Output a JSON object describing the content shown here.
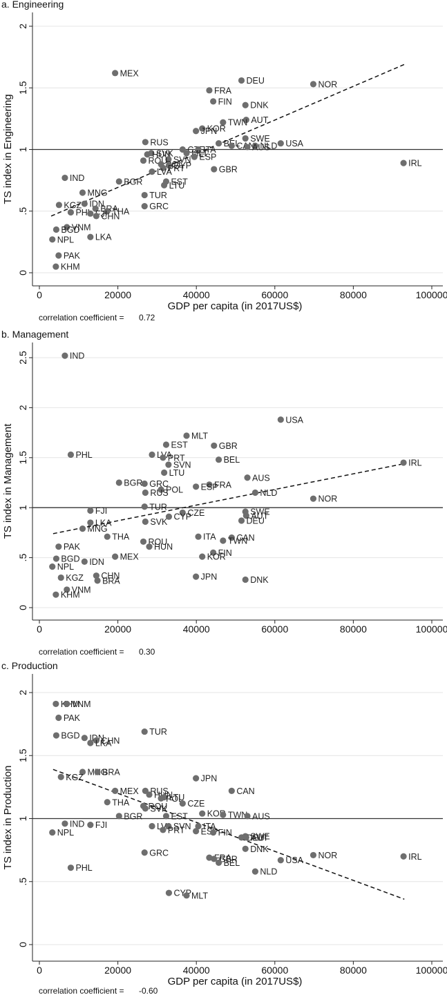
{
  "chart_data": [
    {
      "type": "scatter",
      "title": "a. Engineering",
      "xlabel": "GDP per capita (in 2017US$)",
      "ylabel": "TS index in Engineering",
      "xlim": [
        0,
        100000
      ],
      "ylim": [
        0,
        2
      ],
      "xticks": [
        "0",
        "20000",
        "40000",
        "60000",
        "80000",
        "100000"
      ],
      "yticks": [
        {
          "value": 0,
          "label": "0"
        },
        {
          "value": 0.5,
          "label": ".5"
        },
        {
          "value": 1,
          "label": "1"
        },
        {
          "value": 1.5,
          "label": "1.5"
        },
        {
          "value": 2,
          "label": "2"
        }
      ],
      "reference_line": 1,
      "trend_line": [
        [
          3000,
          0.46
        ],
        [
          93000,
          1.69
        ]
      ],
      "correlation_label": "correlation coefficient =",
      "correlation_value": "0.72",
      "points": [
        {
          "label": "MEX",
          "x": 19300,
          "y": 1.62
        },
        {
          "label": "DEU",
          "x": 51500,
          "y": 1.56
        },
        {
          "label": "NOR",
          "x": 69800,
          "y": 1.53
        },
        {
          "label": "FRA",
          "x": 43300,
          "y": 1.48
        },
        {
          "label": "FIN",
          "x": 44300,
          "y": 1.39
        },
        {
          "label": "DNK",
          "x": 52500,
          "y": 1.36
        },
        {
          "label": "AUT",
          "x": 52700,
          "y": 1.24
        },
        {
          "label": "TWN",
          "x": 46800,
          "y": 1.22
        },
        {
          "label": "KOR",
          "x": 41500,
          "y": 1.17
        },
        {
          "label": "JPN",
          "x": 39900,
          "y": 1.15
        },
        {
          "label": "SWE",
          "x": 52500,
          "y": 1.09
        },
        {
          "label": "RUS",
          "x": 27000,
          "y": 1.06
        },
        {
          "label": "USA",
          "x": 61500,
          "y": 1.05
        },
        {
          "label": "BEL",
          "x": 45700,
          "y": 1.05
        },
        {
          "label": "CAN",
          "x": 49000,
          "y": 1.03
        },
        {
          "label": "NLD",
          "x": 55000,
          "y": 1.03
        },
        {
          "label": "AUS",
          "x": 53000,
          "y": 1.02
        },
        {
          "label": "CZE",
          "x": 36500,
          "y": 1.0
        },
        {
          "label": "ITA",
          "x": 40500,
          "y": 1.0
        },
        {
          "label": "SVK",
          "x": 28500,
          "y": 0.97
        },
        {
          "label": "MLT",
          "x": 37500,
          "y": 0.97
        },
        {
          "label": "HUN",
          "x": 27500,
          "y": 0.96
        },
        {
          "label": "ESP",
          "x": 39500,
          "y": 0.94
        },
        {
          "label": "SVN",
          "x": 32900,
          "y": 0.92
        },
        {
          "label": "ROU",
          "x": 26500,
          "y": 0.91
        },
        {
          "label": "POL",
          "x": 31000,
          "y": 0.88
        },
        {
          "label": "CYP",
          "x": 33000,
          "y": 0.87
        },
        {
          "label": "PRT",
          "x": 31500,
          "y": 0.85
        },
        {
          "label": "LVA",
          "x": 28700,
          "y": 0.82
        },
        {
          "label": "GBR",
          "x": 44500,
          "y": 0.84
        },
        {
          "label": "IRL",
          "x": 92800,
          "y": 0.89
        },
        {
          "label": "IND",
          "x": 6500,
          "y": 0.77
        },
        {
          "label": "BGR",
          "x": 20300,
          "y": 0.74
        },
        {
          "label": "EST",
          "x": 32300,
          "y": 0.74
        },
        {
          "label": "LTU",
          "x": 31800,
          "y": 0.71
        },
        {
          "label": "MNG",
          "x": 11000,
          "y": 0.65
        },
        {
          "label": "TUR",
          "x": 26800,
          "y": 0.63
        },
        {
          "label": "KGZ",
          "x": 5000,
          "y": 0.55
        },
        {
          "label": "IDN",
          "x": 11500,
          "y": 0.56
        },
        {
          "label": "GRC",
          "x": 26800,
          "y": 0.54
        },
        {
          "label": "BRA",
          "x": 14300,
          "y": 0.52
        },
        {
          "label": "THA",
          "x": 17300,
          "y": 0.5
        },
        {
          "label": "PHL",
          "x": 8000,
          "y": 0.49
        },
        {
          "label": "FJI",
          "x": 13000,
          "y": 0.48
        },
        {
          "label": "CHN",
          "x": 14500,
          "y": 0.46
        },
        {
          "label": "VNM",
          "x": 7000,
          "y": 0.37
        },
        {
          "label": "BGD",
          "x": 4300,
          "y": 0.35
        },
        {
          "label": "LKA",
          "x": 13000,
          "y": 0.29
        },
        {
          "label": "NPL",
          "x": 3300,
          "y": 0.27
        },
        {
          "label": "PAK",
          "x": 4900,
          "y": 0.14
        },
        {
          "label": "KHM",
          "x": 4200,
          "y": 0.05
        }
      ]
    },
    {
      "type": "scatter",
      "title": "b. Management",
      "xlabel": "",
      "ylabel": "TS index in Management",
      "xlim": [
        0,
        100000
      ],
      "ylim": [
        0,
        2.5
      ],
      "xticks": [
        "0",
        "20000",
        "40000",
        "60000",
        "80000",
        "100000"
      ],
      "yticks": [
        {
          "value": 0,
          "label": "0"
        },
        {
          "value": 0.5,
          "label": ".5"
        },
        {
          "value": 1,
          "label": "1"
        },
        {
          "value": 1.5,
          "label": "1.5"
        },
        {
          "value": 2,
          "label": "2"
        },
        {
          "value": 2.5,
          "label": "2.5"
        }
      ],
      "reference_line": 1,
      "trend_line": [
        [
          3500,
          0.74
        ],
        [
          93000,
          1.44
        ]
      ],
      "correlation_label": "correlation coefficient =",
      "correlation_value": "0.30",
      "points": [
        {
          "label": "IND",
          "x": 6500,
          "y": 2.52
        },
        {
          "label": "USA",
          "x": 61500,
          "y": 1.88
        },
        {
          "label": "MLT",
          "x": 37500,
          "y": 1.72
        },
        {
          "label": "EST",
          "x": 32300,
          "y": 1.63
        },
        {
          "label": "GBR",
          "x": 44500,
          "y": 1.62
        },
        {
          "label": "PHL",
          "x": 8000,
          "y": 1.53
        },
        {
          "label": "LVA",
          "x": 28700,
          "y": 1.53
        },
        {
          "label": "PRT",
          "x": 31500,
          "y": 1.5
        },
        {
          "label": "BEL",
          "x": 45700,
          "y": 1.48
        },
        {
          "label": "IRL",
          "x": 92800,
          "y": 1.45
        },
        {
          "label": "SVN",
          "x": 32900,
          "y": 1.43
        },
        {
          "label": "LTU",
          "x": 31800,
          "y": 1.35
        },
        {
          "label": "AUS",
          "x": 53000,
          "y": 1.3
        },
        {
          "label": "BGR",
          "x": 20300,
          "y": 1.25
        },
        {
          "label": "GRC",
          "x": 26800,
          "y": 1.24
        },
        {
          "label": "FRA",
          "x": 43300,
          "y": 1.23
        },
        {
          "label": "ESP",
          "x": 39900,
          "y": 1.21
        },
        {
          "label": "POL",
          "x": 31000,
          "y": 1.18
        },
        {
          "label": "RUS",
          "x": 27000,
          "y": 1.15
        },
        {
          "label": "NLD",
          "x": 55000,
          "y": 1.15
        },
        {
          "label": "NOR",
          "x": 69800,
          "y": 1.09
        },
        {
          "label": "TUR",
          "x": 26800,
          "y": 1.01
        },
        {
          "label": "FJI",
          "x": 13000,
          "y": 0.97
        },
        {
          "label": "SWE",
          "x": 52500,
          "y": 0.96
        },
        {
          "label": "CZE",
          "x": 36500,
          "y": 0.95
        },
        {
          "label": "AUT",
          "x": 52700,
          "y": 0.92
        },
        {
          "label": "CYP",
          "x": 33000,
          "y": 0.91
        },
        {
          "label": "SVK",
          "x": 27000,
          "y": 0.86
        },
        {
          "label": "DEU",
          "x": 51500,
          "y": 0.87
        },
        {
          "label": "LKA",
          "x": 13000,
          "y": 0.85
        },
        {
          "label": "MNG",
          "x": 11000,
          "y": 0.79
        },
        {
          "label": "THA",
          "x": 17300,
          "y": 0.71
        },
        {
          "label": "ITA",
          "x": 40500,
          "y": 0.71
        },
        {
          "label": "CAN",
          "x": 49000,
          "y": 0.7
        },
        {
          "label": "TWN",
          "x": 46800,
          "y": 0.67
        },
        {
          "label": "ROU",
          "x": 26500,
          "y": 0.66
        },
        {
          "label": "HUN",
          "x": 28000,
          "y": 0.61
        },
        {
          "label": "PAK",
          "x": 4900,
          "y": 0.61
        },
        {
          "label": "FIN",
          "x": 44300,
          "y": 0.55
        },
        {
          "label": "KOR",
          "x": 41500,
          "y": 0.51
        },
        {
          "label": "MEX",
          "x": 19300,
          "y": 0.51
        },
        {
          "label": "BGD",
          "x": 4300,
          "y": 0.49
        },
        {
          "label": "IDN",
          "x": 11500,
          "y": 0.46
        },
        {
          "label": "NPL",
          "x": 3300,
          "y": 0.41
        },
        {
          "label": "JPN",
          "x": 39900,
          "y": 0.31
        },
        {
          "label": "CHN",
          "x": 14500,
          "y": 0.32
        },
        {
          "label": "KGZ",
          "x": 5500,
          "y": 0.3
        },
        {
          "label": "BRA",
          "x": 14800,
          "y": 0.27
        },
        {
          "label": "DNK",
          "x": 52500,
          "y": 0.28
        },
        {
          "label": "VNM",
          "x": 7000,
          "y": 0.18
        },
        {
          "label": "KHM",
          "x": 4200,
          "y": 0.13
        }
      ]
    },
    {
      "type": "scatter",
      "title": "c. Production",
      "xlabel": "GDP per capita (in 2017US$)",
      "ylabel": "TS index in Production",
      "xlim": [
        0,
        100000
      ],
      "ylim": [
        0,
        2
      ],
      "xticks": [
        "0",
        "20000",
        "40000",
        "60000",
        "80000",
        "100000"
      ],
      "yticks": [
        {
          "value": 0,
          "label": "0"
        },
        {
          "value": 0.5,
          "label": ".5"
        },
        {
          "value": 1,
          "label": "1"
        },
        {
          "value": 1.5,
          "label": "1.5"
        },
        {
          "value": 2,
          "label": "2"
        }
      ],
      "reference_line": 1,
      "trend_line": [
        [
          3500,
          1.39
        ],
        [
          93000,
          0.36
        ]
      ],
      "correlation_label": "correlation coefficient =",
      "correlation_value": "-0.60",
      "points": [
        {
          "label": "KHM",
          "x": 4200,
          "y": 1.91
        },
        {
          "label": "VNM",
          "x": 7000,
          "y": 1.91
        },
        {
          "label": "PAK",
          "x": 4900,
          "y": 1.8
        },
        {
          "label": "TUR",
          "x": 26800,
          "y": 1.69
        },
        {
          "label": "BGD",
          "x": 4300,
          "y": 1.66
        },
        {
          "label": "IDN",
          "x": 11500,
          "y": 1.64
        },
        {
          "label": "CHN",
          "x": 14500,
          "y": 1.62
        },
        {
          "label": "LKA",
          "x": 13000,
          "y": 1.6
        },
        {
          "label": "MNG",
          "x": 11000,
          "y": 1.37
        },
        {
          "label": "BRA",
          "x": 14800,
          "y": 1.37
        },
        {
          "label": "KGZ",
          "x": 5500,
          "y": 1.33
        },
        {
          "label": "JPN",
          "x": 39900,
          "y": 1.32
        },
        {
          "label": "MEX",
          "x": 19300,
          "y": 1.22
        },
        {
          "label": "RUS",
          "x": 27000,
          "y": 1.22
        },
        {
          "label": "CAN",
          "x": 49000,
          "y": 1.22
        },
        {
          "label": "HUN",
          "x": 28000,
          "y": 1.19
        },
        {
          "label": "LTU",
          "x": 31800,
          "y": 1.17
        },
        {
          "label": "POL",
          "x": 31000,
          "y": 1.16
        },
        {
          "label": "THA",
          "x": 17300,
          "y": 1.13
        },
        {
          "label": "CZE",
          "x": 36500,
          "y": 1.12
        },
        {
          "label": "ROU",
          "x": 26500,
          "y": 1.1
        },
        {
          "label": "SVK",
          "x": 27000,
          "y": 1.08
        },
        {
          "label": "KOR",
          "x": 41500,
          "y": 1.04
        },
        {
          "label": "TWN",
          "x": 46800,
          "y": 1.03
        },
        {
          "label": "EST",
          "x": 32300,
          "y": 1.02
        },
        {
          "label": "BGR",
          "x": 20300,
          "y": 1.02
        },
        {
          "label": "AUS",
          "x": 53000,
          "y": 1.02
        },
        {
          "label": "IND",
          "x": 6500,
          "y": 0.96
        },
        {
          "label": "FJI",
          "x": 13000,
          "y": 0.95
        },
        {
          "label": "LVA",
          "x": 28700,
          "y": 0.94
        },
        {
          "label": "SVN",
          "x": 32900,
          "y": 0.94
        },
        {
          "label": "ITA",
          "x": 40500,
          "y": 0.94
        },
        {
          "label": "PRT",
          "x": 31500,
          "y": 0.91
        },
        {
          "label": "ESP",
          "x": 39900,
          "y": 0.9
        },
        {
          "label": "NPL",
          "x": 3300,
          "y": 0.89
        },
        {
          "label": "FIN",
          "x": 44300,
          "y": 0.89
        },
        {
          "label": "SWE",
          "x": 52500,
          "y": 0.86
        },
        {
          "label": "DEU",
          "x": 51500,
          "y": 0.85
        },
        {
          "label": "AUT",
          "x": 52700,
          "y": 0.85
        },
        {
          "label": "DNK",
          "x": 52500,
          "y": 0.76
        },
        {
          "label": "GRC",
          "x": 26800,
          "y": 0.73
        },
        {
          "label": "NOR",
          "x": 69800,
          "y": 0.71
        },
        {
          "label": "IRL",
          "x": 92800,
          "y": 0.7
        },
        {
          "label": "FRA",
          "x": 43300,
          "y": 0.69
        },
        {
          "label": "GBR",
          "x": 44500,
          "y": 0.68
        },
        {
          "label": "USA",
          "x": 61500,
          "y": 0.67
        },
        {
          "label": "BEL",
          "x": 45700,
          "y": 0.65
        },
        {
          "label": "PHL",
          "x": 8000,
          "y": 0.61
        },
        {
          "label": "NLD",
          "x": 55000,
          "y": 0.58
        },
        {
          "label": "CYP",
          "x": 33000,
          "y": 0.41
        },
        {
          "label": "MLT",
          "x": 37500,
          "y": 0.39
        }
      ]
    }
  ]
}
